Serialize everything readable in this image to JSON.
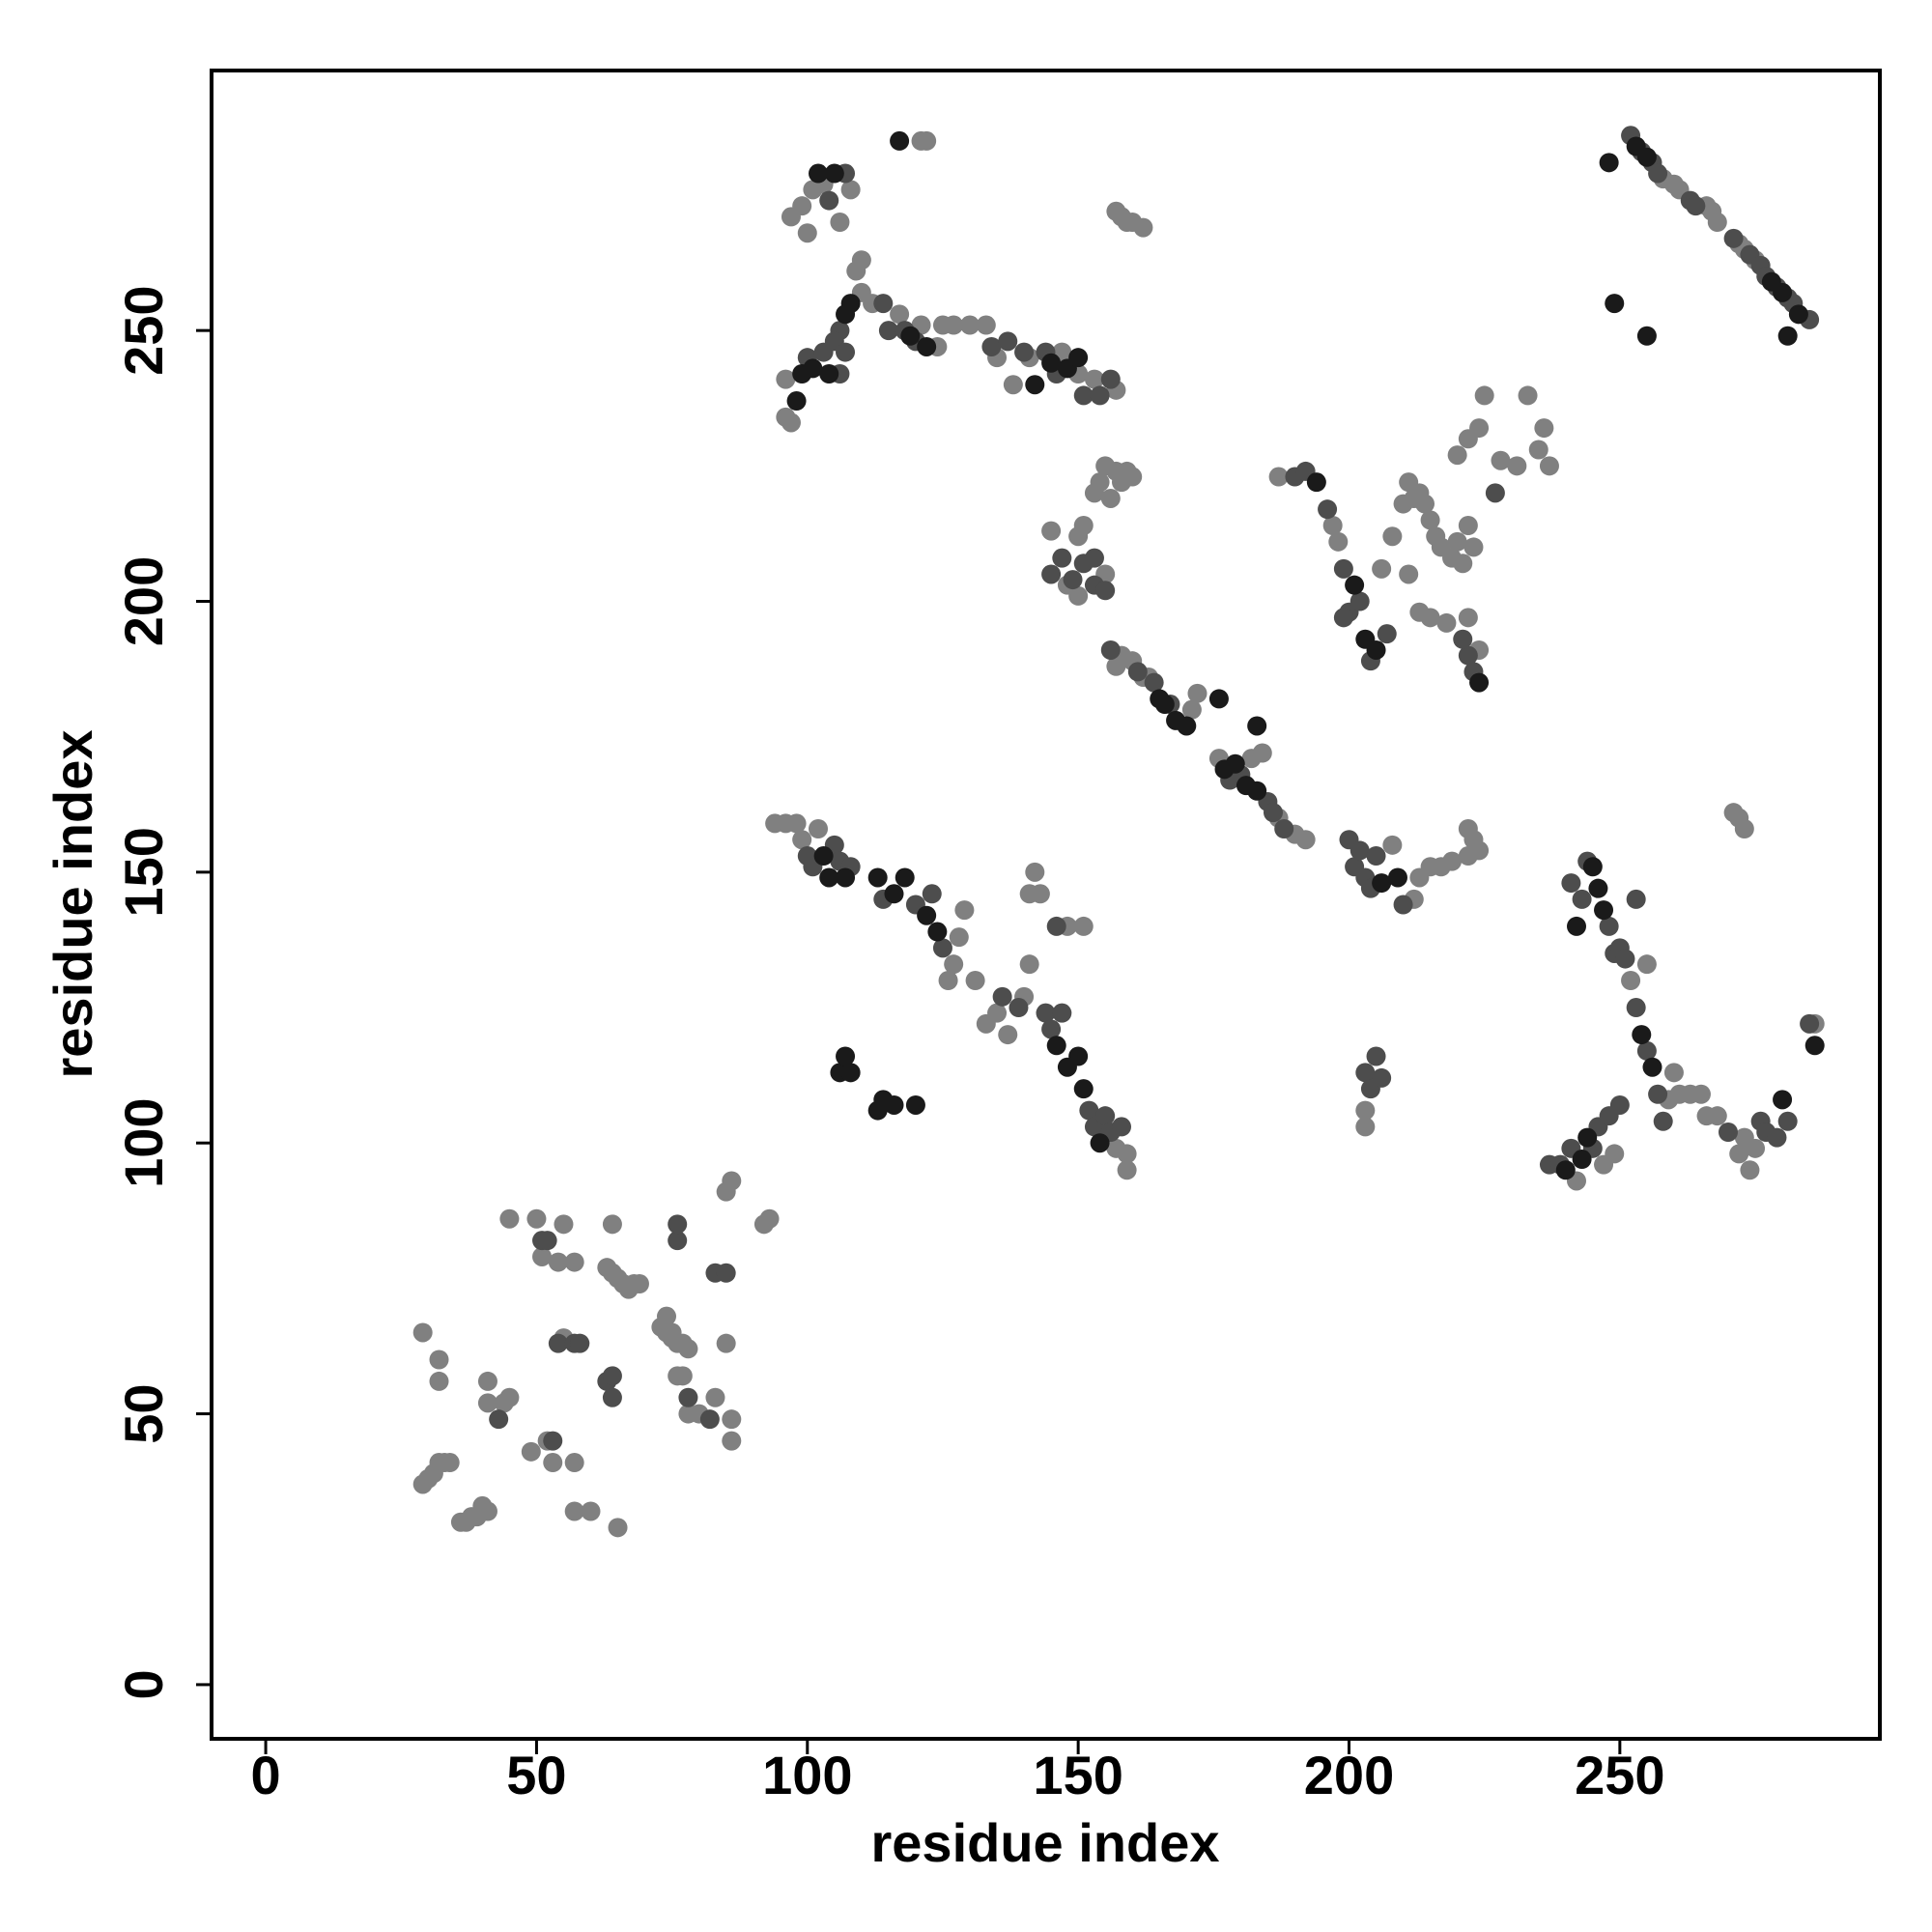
{
  "chart_data": {
    "type": "scatter",
    "xlabel": "residue index",
    "ylabel": "residue index",
    "xlim": [
      -10,
      298
    ],
    "ylim": [
      -10,
      298
    ],
    "xticks": [
      0,
      50,
      100,
      150,
      200,
      250
    ],
    "yticks": [
      0,
      50,
      100,
      150,
      200,
      250
    ],
    "grid": false,
    "series": [
      {
        "color": "#808080",
        "x": [
          29,
          29,
          30,
          31,
          32,
          33,
          34,
          32,
          32,
          36,
          37,
          38,
          39,
          40,
          41,
          41,
          41,
          44,
          45,
          45,
          49,
          50,
          51,
          53,
          54,
          55,
          55,
          57,
          57,
          57,
          60,
          64,
          63,
          64,
          65,
          66,
          67,
          68,
          69,
          65,
          73,
          74,
          75,
          76,
          77,
          78,
          74,
          75,
          76,
          77,
          78,
          80,
          83,
          86,
          86,
          85,
          85,
          86,
          92,
          93,
          52,
          96,
          97,
          99,
          100,
          101,
          103,
          106,
          108,
          109,
          110,
          110,
          112,
          117,
          121,
          124,
          125,
          127,
          130,
          133,
          135,
          138,
          141,
          147,
          150,
          153,
          157,
          121,
          122,
          157,
          158,
          159,
          160,
          162,
          96,
          97,
          94,
          96,
          98,
          99,
          102,
          127,
          128,
          129,
          131,
          133,
          135,
          137,
          140,
          141,
          141,
          142,
          143,
          148,
          151,
          157,
          159,
          159,
          126,
          145,
          148,
          150,
          155,
          153,
          154,
          155,
          156,
          157,
          158,
          159,
          160,
          151,
          150,
          157,
          158,
          160,
          162,
          163,
          171,
          172,
          176,
          182,
          184,
          187,
          190,
          192,
          187,
          197,
          198,
          208,
          210,
          211,
          212,
          213,
          214,
          215,
          216,
          217,
          219,
          220,
          221,
          222,
          223,
          211,
          213,
          215,
          218,
          224,
          222,
          220,
          222,
          224,
          225,
          228,
          231,
          233,
          235,
          236,
          237,
          206,
          208,
          212,
          213,
          215,
          217,
          219,
          222,
          222,
          223,
          224,
          203,
          203,
          242,
          247,
          249,
          252,
          259,
          260,
          261,
          263,
          265,
          266,
          268,
          272,
          273,
          274,
          275,
          271,
          272,
          273,
          286,
          255,
          258,
          260,
          261,
          266,
          267,
          268,
          272,
          273,
          275
        ],
        "y": [
          65,
          37,
          38,
          39,
          41,
          41,
          41,
          60,
          56,
          30,
          30,
          31,
          31,
          33,
          32,
          56,
          52,
          52,
          53,
          86,
          43,
          86,
          79,
          41,
          78,
          64,
          85,
          78,
          41,
          32,
          32,
          85,
          77,
          76,
          75,
          74,
          73,
          74,
          74,
          29,
          66,
          65,
          64,
          63,
          63,
          62,
          68,
          65,
          57,
          57,
          50,
          50,
          53,
          49,
          45,
          63,
          91,
          93,
          85,
          86,
          45,
          241,
          271,
          273,
          268,
          276,
          277,
          270,
          276,
          261,
          263,
          257,
          255,
          253,
          251,
          247,
          251,
          251,
          251,
          251,
          245,
          240,
          245,
          246,
          242,
          241,
          239,
          285,
          285,
          272,
          271,
          270,
          270,
          269,
          234,
          233,
          159,
          159,
          159,
          156,
          158,
          133,
          138,
          143,
          130,
          122,
          124,
          120,
          127,
          133,
          146,
          150,
          146,
          140,
          140,
          99,
          98,
          95,
          130,
          213,
          203,
          201,
          205,
          220,
          222,
          225,
          219,
          224,
          222,
          224,
          223,
          214,
          212,
          188,
          190,
          189,
          186,
          186,
          180,
          183,
          171,
          171,
          172,
          160,
          157,
          156,
          223,
          214,
          211,
          212,
          218,
          222,
          219,
          220,
          218,
          215,
          212,
          210,
          208,
          211,
          207,
          214,
          210,
          205,
          198,
          197,
          196,
          191,
          197,
          227,
          230,
          232,
          238,
          226,
          225,
          238,
          228,
          232,
          225,
          206,
          155,
          145,
          149,
          151,
          151,
          152,
          153,
          158,
          156,
          154,
          103,
          106,
          93,
          96,
          98,
          130,
          108,
          113,
          109,
          109,
          109,
          105,
          105,
          98,
          101,
          95,
          99,
          161,
          160,
          158,
          122,
          133,
          278,
          277,
          276,
          273,
          272,
          270,
          266,
          265,
          263
        ]
      },
      {
        "color": "#4d4d4d",
        "x": [
          51,
          52,
          53,
          54,
          57,
          58,
          63,
          64,
          64,
          76,
          76,
          83,
          85,
          82,
          43,
          78,
          100,
          103,
          106,
          105,
          107,
          106,
          114,
          115,
          118,
          120,
          134,
          137,
          140,
          144,
          146,
          151,
          154,
          156,
          104,
          107,
          100,
          101,
          105,
          106,
          108,
          114,
          120,
          123,
          125,
          136,
          139,
          144,
          145,
          147,
          152,
          153,
          155,
          156,
          158,
          146,
          145,
          147,
          149,
          151,
          153,
          153,
          155,
          164,
          167,
          178,
          180,
          185,
          186,
          188,
          156,
          161,
          190,
          192,
          196,
          199,
          200,
          202,
          207,
          204,
          199,
          222,
          221,
          223,
          227,
          200,
          201,
          202,
          203,
          204,
          205,
          203,
          204,
          205,
          206,
          210,
          237,
          239,
          241,
          245,
          246,
          248,
          250,
          241,
          243,
          244,
          248,
          249,
          250,
          251,
          253,
          255,
          257,
          258,
          270,
          276,
          277,
          279,
          281,
          285,
          253,
          252,
          254,
          256,
          257,
          263,
          264,
          271,
          274,
          276,
          277,
          279,
          281,
          282,
          285
        ],
        "y": [
          82,
          82,
          45,
          63,
          63,
          63,
          56,
          53,
          57,
          82,
          85,
          76,
          76,
          49,
          49,
          53,
          245,
          246,
          250,
          248,
          246,
          242,
          255,
          250,
          250,
          248,
          247,
          248,
          246,
          246,
          242,
          238,
          238,
          241,
          274,
          279,
          153,
          151,
          155,
          152,
          151,
          145,
          144,
          146,
          136,
          127,
          125,
          124,
          121,
          124,
          106,
          103,
          105,
          102,
          103,
          140,
          205,
          208,
          204,
          207,
          208,
          203,
          202,
          185,
          181,
          167,
          168,
          163,
          161,
          158,
          191,
          187,
          223,
          224,
          217,
          206,
          198,
          200,
          194,
          189,
          197,
          190,
          193,
          187,
          220,
          156,
          151,
          154,
          149,
          147,
          153,
          113,
          110,
          116,
          112,
          144,
          96,
          96,
          99,
          99,
          103,
          105,
          107,
          148,
          145,
          152,
          140,
          135,
          136,
          134,
          125,
          117,
          109,
          104,
          102,
          104,
          102,
          101,
          104,
          122,
          145,
          286,
          283,
          281,
          279,
          274,
          273,
          267,
          264,
          262,
          260,
          258,
          256,
          255,
          252
        ]
      },
      {
        "color": "#1a1a1a",
        "x": [
          98,
          99,
          101,
          104,
          102,
          105,
          108,
          107,
          117,
          122,
          119,
          142,
          145,
          148,
          150,
          103,
          104,
          107,
          113,
          116,
          118,
          122,
          124,
          146,
          148,
          150,
          151,
          154,
          106,
          107,
          108,
          113,
          114,
          116,
          120,
          165,
          166,
          168,
          170,
          176,
          177,
          179,
          181,
          183,
          183,
          194,
          201,
          203,
          205,
          224,
          206,
          209,
          240,
          243,
          244,
          242,
          245,
          246,
          254,
          256,
          280,
          286,
          247,
          248,
          253,
          255,
          278,
          280,
          281,
          249,
          255,
          283
        ],
        "y": [
          237,
          242,
          243,
          242,
          279,
          279,
          255,
          253,
          285,
          247,
          249,
          240,
          244,
          243,
          245,
          153,
          149,
          149,
          149,
          146,
          149,
          142,
          139,
          118,
          114,
          116,
          110,
          100,
          113,
          116,
          113,
          106,
          108,
          107,
          107,
          182,
          181,
          178,
          177,
          182,
          169,
          170,
          166,
          165,
          177,
          222,
          203,
          193,
          191,
          185,
          148,
          149,
          95,
          97,
          101,
          140,
          151,
          147,
          120,
          114,
          108,
          118,
          143,
          281,
          284,
          282,
          259,
          257,
          249,
          255,
          249,
          253
        ]
      }
    ]
  }
}
